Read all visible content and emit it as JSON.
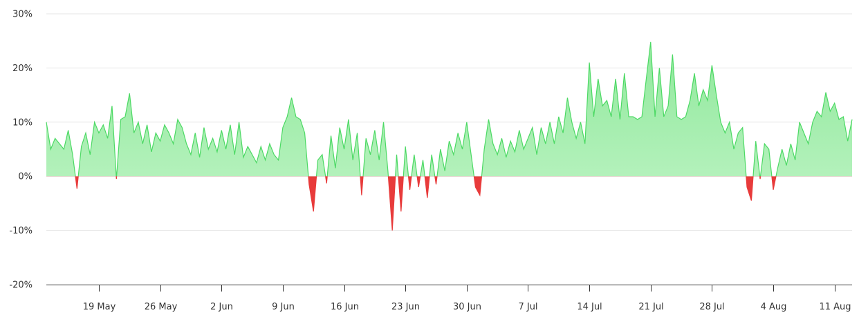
{
  "chart_data": {
    "type": "area",
    "title": "",
    "xlabel": "",
    "ylabel": "",
    "ylim": [
      -20,
      30
    ],
    "y_ticks": [
      -20,
      -10,
      0,
      10,
      20,
      30
    ],
    "y_tick_labels": [
      "-20%",
      "-10%",
      "0%",
      "10%",
      "20%",
      "30%"
    ],
    "x_range": [
      "2024-05-13",
      "2024-08-13"
    ],
    "x_tick_dates": [
      "2024-05-19",
      "2024-05-26",
      "2024-06-02",
      "2024-06-09",
      "2024-06-16",
      "2024-06-23",
      "2024-06-30",
      "2024-07-07",
      "2024-07-14",
      "2024-07-21",
      "2024-07-28",
      "2024-08-04",
      "2024-08-11"
    ],
    "x_tick_labels": [
      "19 May",
      "26 May",
      "2 Jun",
      "9 Jun",
      "16 Jun",
      "23 Jun",
      "30 Jun",
      "7 Jul",
      "14 Jul",
      "21 Jul",
      "28 Jul",
      "4 Aug",
      "11 Aug"
    ],
    "grid": true,
    "positive_color": "#4cd964",
    "positive_fill_top": "#8fe89b",
    "positive_fill_bottom": "#c2f5c8",
    "negative_color": "#e83b3b",
    "series": [
      {
        "points": [
          [
            "2024-05-13",
            10
          ],
          [
            "2024-05-13T12:00",
            5
          ],
          [
            "2024-05-14",
            7
          ],
          [
            "2024-05-14T12:00",
            6
          ],
          [
            "2024-05-15",
            5
          ],
          [
            "2024-05-15T12:00",
            8.5
          ],
          [
            "2024-05-16",
            4
          ],
          [
            "2024-05-16T12:00",
            -2.3
          ],
          [
            "2024-05-17",
            5.5
          ],
          [
            "2024-05-17T12:00",
            8
          ],
          [
            "2024-05-18",
            4
          ],
          [
            "2024-05-18T12:00",
            10
          ],
          [
            "2024-05-19",
            8
          ],
          [
            "2024-05-19T12:00",
            9.5
          ],
          [
            "2024-05-20",
            7
          ],
          [
            "2024-05-20T12:00",
            13
          ],
          [
            "2024-05-21",
            -0.5
          ],
          [
            "2024-05-21T12:00",
            10.5
          ],
          [
            "2024-05-22",
            11
          ],
          [
            "2024-05-22T12:00",
            15.3
          ],
          [
            "2024-05-23",
            8
          ],
          [
            "2024-05-23T12:00",
            10
          ],
          [
            "2024-05-24",
            6
          ],
          [
            "2024-05-24T12:00",
            9.5
          ],
          [
            "2024-05-25",
            4.5
          ],
          [
            "2024-05-25T12:00",
            8
          ],
          [
            "2024-05-26",
            6.5
          ],
          [
            "2024-05-26T12:00",
            9.5
          ],
          [
            "2024-05-27",
            8
          ],
          [
            "2024-05-27T12:00",
            6
          ],
          [
            "2024-05-28",
            10.5
          ],
          [
            "2024-05-28T12:00",
            9
          ],
          [
            "2024-05-29",
            6
          ],
          [
            "2024-05-29T12:00",
            4
          ],
          [
            "2024-05-30",
            8
          ],
          [
            "2024-05-30T12:00",
            3.5
          ],
          [
            "2024-05-31",
            9
          ],
          [
            "2024-05-31T12:00",
            5
          ],
          [
            "2024-06-01",
            7
          ],
          [
            "2024-06-01T12:00",
            4.5
          ],
          [
            "2024-06-02",
            8.5
          ],
          [
            "2024-06-02T12:00",
            5
          ],
          [
            "2024-06-03",
            9.5
          ],
          [
            "2024-06-03T12:00",
            4
          ],
          [
            "2024-06-04",
            10
          ],
          [
            "2024-06-04T12:00",
            3.5
          ],
          [
            "2024-06-05",
            5.5
          ],
          [
            "2024-06-05T12:00",
            4
          ],
          [
            "2024-06-06",
            2.5
          ],
          [
            "2024-06-06T12:00",
            5.5
          ],
          [
            "2024-06-07",
            3
          ],
          [
            "2024-06-07T12:00",
            6
          ],
          [
            "2024-06-08",
            4
          ],
          [
            "2024-06-08T12:00",
            3
          ],
          [
            "2024-06-09",
            9
          ],
          [
            "2024-06-09T12:00",
            11
          ],
          [
            "2024-06-10",
            14.5
          ],
          [
            "2024-06-10T12:00",
            11
          ],
          [
            "2024-06-11",
            10.5
          ],
          [
            "2024-06-11T12:00",
            8
          ],
          [
            "2024-06-12",
            -1.5
          ],
          [
            "2024-06-12T12:00",
            -6.5
          ],
          [
            "2024-06-13",
            3
          ],
          [
            "2024-06-13T12:00",
            4
          ],
          [
            "2024-06-14",
            -1.3
          ],
          [
            "2024-06-14T12:00",
            7.5
          ],
          [
            "2024-06-15",
            1.5
          ],
          [
            "2024-06-15T12:00",
            9
          ],
          [
            "2024-06-16",
            5
          ],
          [
            "2024-06-16T12:00",
            10.5
          ],
          [
            "2024-06-17",
            3
          ],
          [
            "2024-06-17T12:00",
            8
          ],
          [
            "2024-06-18",
            -3.5
          ],
          [
            "2024-06-18T12:00",
            7
          ],
          [
            "2024-06-19",
            4
          ],
          [
            "2024-06-19T12:00",
            8.5
          ],
          [
            "2024-06-20",
            3
          ],
          [
            "2024-06-20T12:00",
            10
          ],
          [
            "2024-06-21",
            1
          ],
          [
            "2024-06-21T12:00",
            -10
          ],
          [
            "2024-06-22",
            4
          ],
          [
            "2024-06-22T12:00",
            -6.5
          ],
          [
            "2024-06-23",
            5.5
          ],
          [
            "2024-06-23T12:00",
            -2.5
          ],
          [
            "2024-06-24",
            4
          ],
          [
            "2024-06-24T12:00",
            -2
          ],
          [
            "2024-06-25",
            3
          ],
          [
            "2024-06-25T12:00",
            -4
          ],
          [
            "2024-06-26",
            4
          ],
          [
            "2024-06-26T12:00",
            -1.5
          ],
          [
            "2024-06-27",
            5
          ],
          [
            "2024-06-27T12:00",
            1
          ],
          [
            "2024-06-28",
            6.5
          ],
          [
            "2024-06-28T12:00",
            4
          ],
          [
            "2024-06-29",
            8
          ],
          [
            "2024-06-29T12:00",
            5
          ],
          [
            "2024-06-30",
            10
          ],
          [
            "2024-06-30T12:00",
            4
          ],
          [
            "2024-07-01",
            -2
          ],
          [
            "2024-07-01T12:00",
            -3.5
          ],
          [
            "2024-07-02",
            5
          ],
          [
            "2024-07-02T12:00",
            10.5
          ],
          [
            "2024-07-03",
            6
          ],
          [
            "2024-07-03T12:00",
            4
          ],
          [
            "2024-07-04",
            7
          ],
          [
            "2024-07-04T12:00",
            3.5
          ],
          [
            "2024-07-05",
            6.5
          ],
          [
            "2024-07-05T12:00",
            4.5
          ],
          [
            "2024-07-06",
            8.5
          ],
          [
            "2024-07-06T12:00",
            5
          ],
          [
            "2024-07-07",
            7
          ],
          [
            "2024-07-07T12:00",
            9
          ],
          [
            "2024-07-08",
            4
          ],
          [
            "2024-07-08T12:00",
            9
          ],
          [
            "2024-07-09",
            6
          ],
          [
            "2024-07-09T12:00",
            10
          ],
          [
            "2024-07-10",
            6
          ],
          [
            "2024-07-10T12:00",
            11
          ],
          [
            "2024-07-11",
            8
          ],
          [
            "2024-07-11T12:00",
            14.5
          ],
          [
            "2024-07-12",
            10
          ],
          [
            "2024-07-12T12:00",
            7
          ],
          [
            "2024-07-13",
            10
          ],
          [
            "2024-07-13T12:00",
            6
          ],
          [
            "2024-07-14",
            21
          ],
          [
            "2024-07-14T12:00",
            11
          ],
          [
            "2024-07-15",
            18
          ],
          [
            "2024-07-15T12:00",
            13
          ],
          [
            "2024-07-16",
            14
          ],
          [
            "2024-07-16T12:00",
            11
          ],
          [
            "2024-07-17",
            18
          ],
          [
            "2024-07-17T12:00",
            10.5
          ],
          [
            "2024-07-18",
            19
          ],
          [
            "2024-07-18T12:00",
            11
          ],
          [
            "2024-07-19",
            11
          ],
          [
            "2024-07-19T12:00",
            10.5
          ],
          [
            "2024-07-20",
            11
          ],
          [
            "2024-07-20T12:00",
            18
          ],
          [
            "2024-07-21",
            24.8
          ],
          [
            "2024-07-21T12:00",
            11
          ],
          [
            "2024-07-22",
            20
          ],
          [
            "2024-07-22T12:00",
            11
          ],
          [
            "2024-07-23",
            13
          ],
          [
            "2024-07-23T12:00",
            22.5
          ],
          [
            "2024-07-24",
            11
          ],
          [
            "2024-07-24T12:00",
            10.5
          ],
          [
            "2024-07-25",
            11
          ],
          [
            "2024-07-25T12:00",
            14
          ],
          [
            "2024-07-26",
            19
          ],
          [
            "2024-07-26T12:00",
            13
          ],
          [
            "2024-07-27",
            16
          ],
          [
            "2024-07-27T12:00",
            14
          ],
          [
            "2024-07-28",
            20.5
          ],
          [
            "2024-07-28T12:00",
            15
          ],
          [
            "2024-07-29",
            10
          ],
          [
            "2024-07-29T12:00",
            8
          ],
          [
            "2024-07-30",
            10
          ],
          [
            "2024-07-30T12:00",
            5
          ],
          [
            "2024-07-31",
            8
          ],
          [
            "2024-07-31T12:00",
            9
          ],
          [
            "2024-08-01",
            -2
          ],
          [
            "2024-08-01T12:00",
            -4.5
          ],
          [
            "2024-08-02",
            6.5
          ],
          [
            "2024-08-02T12:00",
            -0.5
          ],
          [
            "2024-08-03",
            6
          ],
          [
            "2024-08-03T12:00",
            5
          ],
          [
            "2024-08-04",
            -2.5
          ],
          [
            "2024-08-04T12:00",
            1.5
          ],
          [
            "2024-08-05",
            5
          ],
          [
            "2024-08-05T12:00",
            2
          ],
          [
            "2024-08-06",
            6
          ],
          [
            "2024-08-06T12:00",
            3
          ],
          [
            "2024-08-07",
            10
          ],
          [
            "2024-08-07T12:00",
            8
          ],
          [
            "2024-08-08",
            6
          ],
          [
            "2024-08-08T12:00",
            10
          ],
          [
            "2024-08-09",
            12
          ],
          [
            "2024-08-09T12:00",
            11
          ],
          [
            "2024-08-10",
            15.5
          ],
          [
            "2024-08-10T12:00",
            12
          ],
          [
            "2024-08-11",
            13.5
          ],
          [
            "2024-08-11T12:00",
            10.5
          ],
          [
            "2024-08-12",
            11
          ],
          [
            "2024-08-12T12:00",
            6.5
          ],
          [
            "2024-08-13",
            10.5
          ]
        ]
      }
    ]
  }
}
